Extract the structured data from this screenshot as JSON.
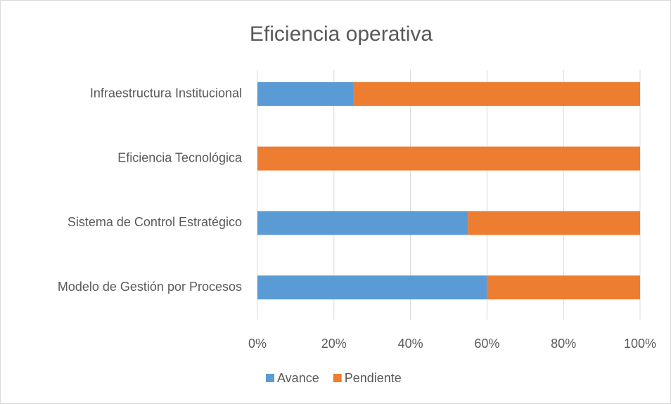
{
  "chart_data": {
    "type": "stacked-bar-horizontal",
    "title": "Eficiencia operativa",
    "categories": [
      "Infraestructura Institucional",
      "Eficiencia Tecnológica",
      "Sistema de Control Estratégico",
      "Modelo de Gestión por Procesos"
    ],
    "series": [
      {
        "name": "Avance",
        "color": "#5b9bd5",
        "values": [
          25,
          0,
          55,
          60
        ]
      },
      {
        "name": "Pendiente",
        "color": "#ed7d31",
        "values": [
          75,
          100,
          45,
          40
        ]
      }
    ],
    "xlim": [
      0,
      100
    ],
    "xticks": [
      {
        "value": 0,
        "label": "0%"
      },
      {
        "value": 20,
        "label": "20%"
      },
      {
        "value": 40,
        "label": "40%"
      },
      {
        "value": 60,
        "label": "60%"
      },
      {
        "value": 80,
        "label": "80%"
      },
      {
        "value": 100,
        "label": "100%"
      }
    ],
    "grid": true,
    "legend": "bottom"
  }
}
